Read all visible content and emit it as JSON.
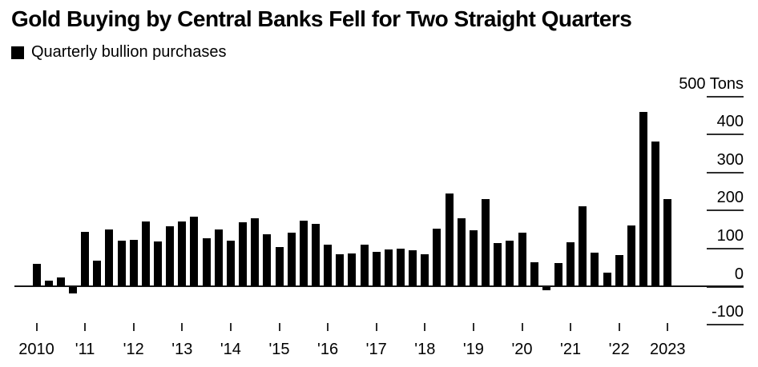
{
  "header": {
    "title": "Gold Buying by Central Banks Fell for Two Straight Quarters"
  },
  "legend": {
    "label": "Quarterly bullion purchases",
    "marker_color": "#000000"
  },
  "chart_data": {
    "type": "bar",
    "title": "Gold Buying by Central Banks Fell for Two Straight Quarters",
    "legend": "Quarterly bullion purchases",
    "unit": "Tons",
    "bar_color": "#000000",
    "background_color": "#ffffff",
    "axis_color": "#2e2e2e",
    "grid": "right-side tick segments only, zero baseline across plot",
    "legend_position": "top-left",
    "ylim": [
      -100,
      500
    ],
    "y_ticks": [
      {
        "value": 500,
        "label": "500 Tons"
      },
      {
        "value": 400,
        "label": "400"
      },
      {
        "value": 300,
        "label": "300"
      },
      {
        "value": 200,
        "label": "200"
      },
      {
        "value": 100,
        "label": "100"
      },
      {
        "value": 0,
        "label": "0"
      },
      {
        "value": -100,
        "label": "-100"
      }
    ],
    "x_tick_labels": [
      "2010",
      "'11",
      "'12",
      "'13",
      "'14",
      "'15",
      "'16",
      "'17",
      "'18",
      "'19",
      "'20",
      "'21",
      "'22",
      "2023"
    ],
    "quarters": [
      "2010 Q1",
      "2010 Q2",
      "2010 Q3",
      "2010 Q4",
      "2011 Q1",
      "2011 Q2",
      "2011 Q3",
      "2011 Q4",
      "2012 Q1",
      "2012 Q2",
      "2012 Q3",
      "2012 Q4",
      "2013 Q1",
      "2013 Q2",
      "2013 Q3",
      "2013 Q4",
      "2014 Q1",
      "2014 Q2",
      "2014 Q3",
      "2014 Q4",
      "2015 Q1",
      "2015 Q2",
      "2015 Q3",
      "2015 Q4",
      "2016 Q1",
      "2016 Q2",
      "2016 Q3",
      "2016 Q4",
      "2017 Q1",
      "2017 Q2",
      "2017 Q3",
      "2017 Q4",
      "2018 Q1",
      "2018 Q2",
      "2018 Q3",
      "2018 Q4",
      "2019 Q1",
      "2019 Q2",
      "2019 Q3",
      "2019 Q4",
      "2020 Q1",
      "2020 Q2",
      "2020 Q3",
      "2020 Q4",
      "2021 Q1",
      "2021 Q2",
      "2021 Q3",
      "2021 Q4",
      "2022 Q1",
      "2022 Q2",
      "2022 Q3",
      "2022 Q4",
      "2023 Q1"
    ],
    "values": [
      60,
      15,
      24,
      -18,
      143,
      69,
      151,
      121,
      123,
      171,
      118,
      159,
      172,
      184,
      128,
      151,
      120,
      170,
      179,
      137,
      104,
      142,
      174,
      164,
      111,
      85,
      88,
      111,
      92,
      97,
      99,
      95,
      85,
      153,
      245,
      179,
      148,
      230,
      114,
      120,
      141,
      65,
      -10,
      62,
      116,
      211,
      90,
      36,
      83,
      160,
      460,
      382,
      230
    ]
  }
}
